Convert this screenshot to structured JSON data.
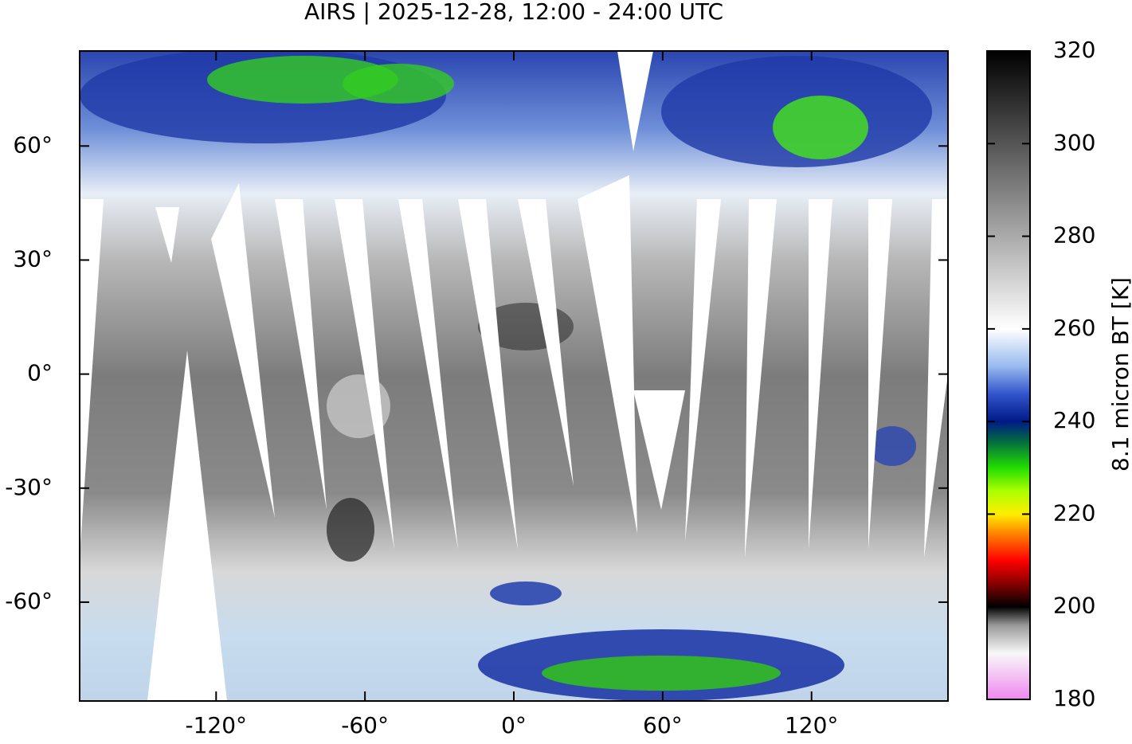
{
  "title": "AIRS | 2025-12-28, 12:00 - 24:00 UTC",
  "map": {
    "xlim": [
      -175,
      175
    ],
    "ylim": [
      -86,
      85
    ],
    "xticks": [
      {
        "value": -120,
        "label": "-120°"
      },
      {
        "value": -60,
        "label": "-60°"
      },
      {
        "value": 0,
        "label": "0°"
      },
      {
        "value": 60,
        "label": "60°"
      },
      {
        "value": 120,
        "label": "120°"
      }
    ],
    "yticks": [
      {
        "value": -60,
        "label": "-60°"
      },
      {
        "value": -30,
        "label": "-30°"
      },
      {
        "value": 0,
        "label": "0°"
      },
      {
        "value": 30,
        "label": "30°"
      },
      {
        "value": 60,
        "label": "60°"
      }
    ]
  },
  "colorbar": {
    "label": "8.1 micron BT [K]",
    "lim": [
      180,
      320
    ],
    "ticks": [
      180,
      200,
      220,
      240,
      260,
      280,
      300,
      320
    ],
    "colormap": [
      {
        "value": 180,
        "color": "#ee88ee"
      },
      {
        "value": 190,
        "color": "#f8f8f8"
      },
      {
        "value": 196,
        "color": "#999999"
      },
      {
        "value": 200,
        "color": "#000000"
      },
      {
        "value": 205,
        "color": "#880000"
      },
      {
        "value": 210,
        "color": "#ff0000"
      },
      {
        "value": 216,
        "color": "#ff8800"
      },
      {
        "value": 220,
        "color": "#ffee00"
      },
      {
        "value": 225,
        "color": "#aaff00"
      },
      {
        "value": 230,
        "color": "#22dd00"
      },
      {
        "value": 236,
        "color": "#006644"
      },
      {
        "value": 240,
        "color": "#001a88"
      },
      {
        "value": 246,
        "color": "#3355cc"
      },
      {
        "value": 252,
        "color": "#99bbee"
      },
      {
        "value": 260,
        "color": "#ffffff"
      },
      {
        "value": 320,
        "color": "#000000"
      }
    ]
  }
}
